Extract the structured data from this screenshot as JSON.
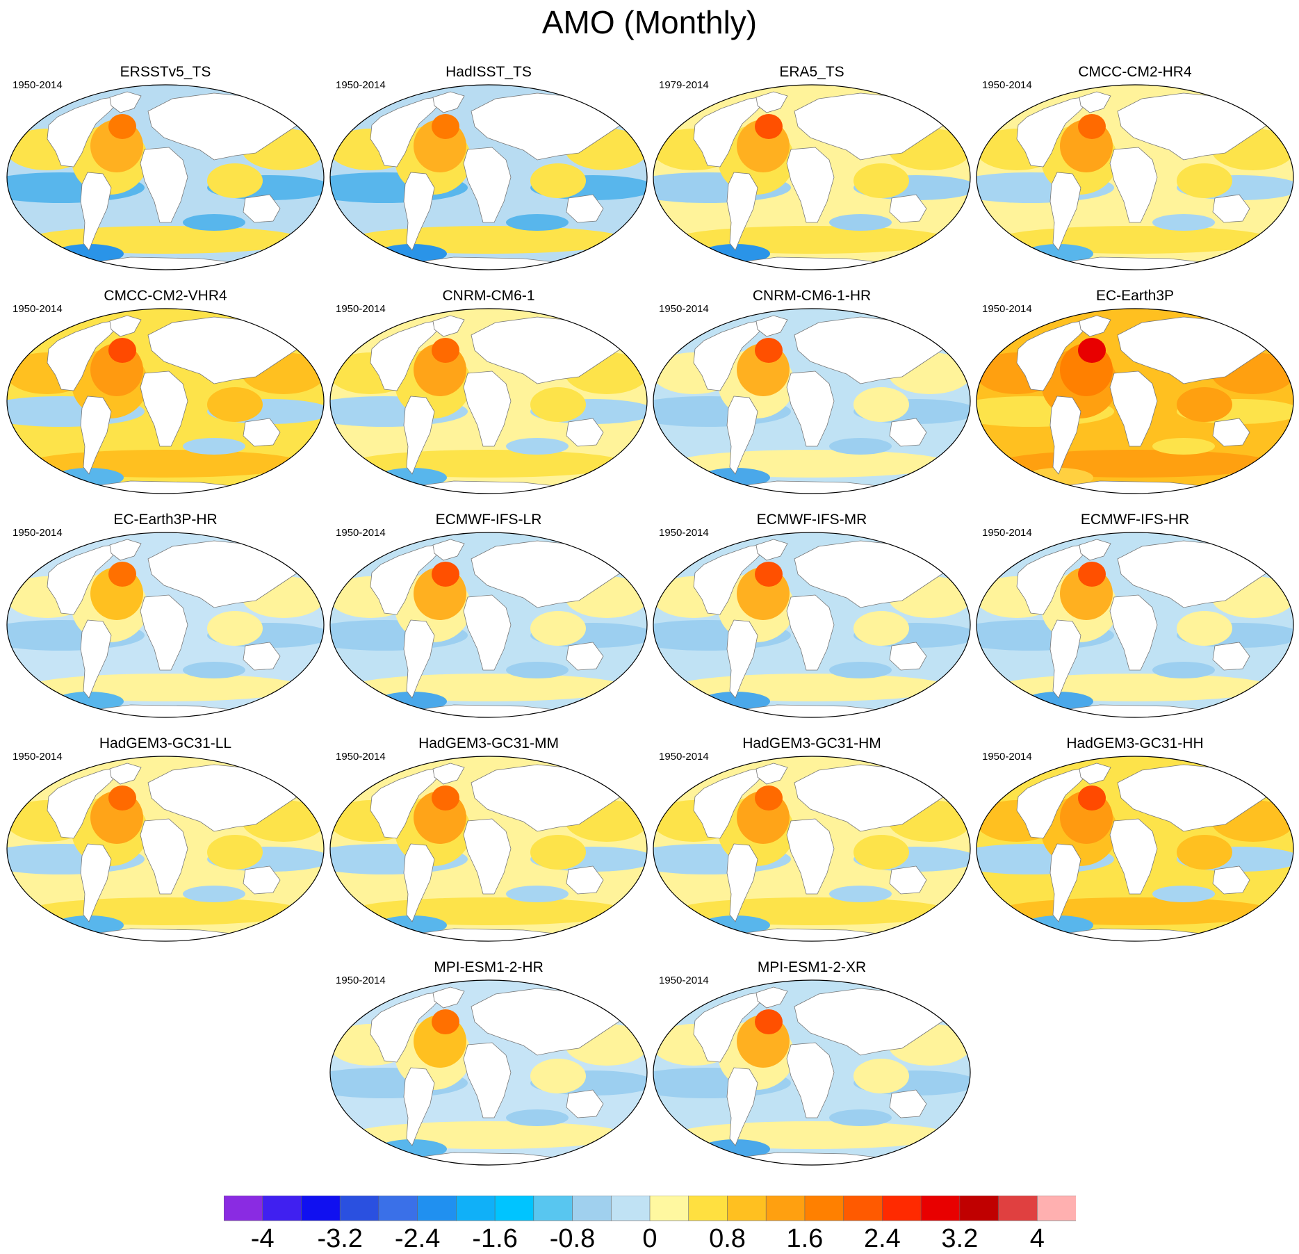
{
  "title": "AMO (Monthly)",
  "panels": [
    {
      "name": "ERSSTv5_TS",
      "period": "1950-2014",
      "pattern": "obs"
    },
    {
      "name": "HadISST_TS",
      "period": "1950-2014",
      "pattern": "obs"
    },
    {
      "name": "ERA5_TS",
      "period": "1979-2014",
      "pattern": "obs-warm"
    },
    {
      "name": "CMCC-CM2-HR4",
      "period": "1950-2014",
      "pattern": "warm-mixed"
    },
    {
      "name": "CMCC-CM2-VHR4",
      "period": "1950-2014",
      "pattern": "warm"
    },
    {
      "name": "CNRM-CM6-1",
      "period": "1950-2014",
      "pattern": "warm-mixed"
    },
    {
      "name": "CNRM-CM6-1-HR",
      "period": "1950-2014",
      "pattern": "cool"
    },
    {
      "name": "EC-Earth3P",
      "period": "1950-2014",
      "pattern": "very-warm"
    },
    {
      "name": "EC-Earth3P-HR",
      "period": "1950-2014",
      "pattern": "mixed"
    },
    {
      "name": "ECMWF-IFS-LR",
      "period": "1950-2014",
      "pattern": "cool"
    },
    {
      "name": "ECMWF-IFS-MR",
      "period": "1950-2014",
      "pattern": "cool"
    },
    {
      "name": "ECMWF-IFS-HR",
      "period": "1950-2014",
      "pattern": "cool"
    },
    {
      "name": "HadGEM3-GC31-LL",
      "period": "1950-2014",
      "pattern": "warm-mixed"
    },
    {
      "name": "HadGEM3-GC31-MM",
      "period": "1950-2014",
      "pattern": "warm-mixed"
    },
    {
      "name": "HadGEM3-GC31-HM",
      "period": "1950-2014",
      "pattern": "warm-mixed"
    },
    {
      "name": "HadGEM3-GC31-HH",
      "period": "1950-2014",
      "pattern": "warm"
    },
    {
      "name": "MPI-ESM1-2-HR",
      "period": "1950-2014",
      "pattern": "mixed"
    },
    {
      "name": "MPI-ESM1-2-XR",
      "period": "1950-2014",
      "pattern": "cool"
    }
  ],
  "colorbar": {
    "colors": [
      "#8a2be2",
      "#4020f0",
      "#1010f0",
      "#2a50e0",
      "#3a70e8",
      "#2090f0",
      "#10b0f8",
      "#00c4ff",
      "#58c6f0",
      "#a0d0ee",
      "#c0e2f4",
      "#fff8a0",
      "#ffe040",
      "#ffc020",
      "#ffa010",
      "#ff8000",
      "#ff5a00",
      "#ff2a00",
      "#e80000",
      "#c00000",
      "#e04040",
      "#ffb0b0"
    ],
    "labels": [
      "-4",
      "-3.2",
      "-2.4",
      "-1.6",
      "-0.8",
      "0",
      "0.8",
      "1.6",
      "2.4",
      "3.2",
      "4"
    ]
  }
}
